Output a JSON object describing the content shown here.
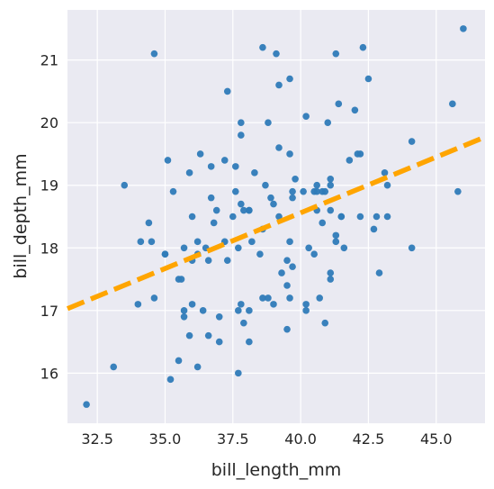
{
  "chart_data": {
    "type": "scatter",
    "xlabel": "bill_length_mm",
    "ylabel": "bill_depth_mm",
    "xlim": [
      31.4,
      46.8
    ],
    "ylim": [
      15.2,
      21.8
    ],
    "xticks": [
      32.5,
      35.0,
      37.5,
      40.0,
      42.5,
      45.0
    ],
    "xtick_labels": [
      "32.5",
      "35.0",
      "37.5",
      "40.0",
      "42.5",
      "45.0"
    ],
    "yticks": [
      16,
      17,
      18,
      19,
      20,
      21
    ],
    "ytick_labels": [
      "16",
      "17",
      "18",
      "19",
      "20",
      "21"
    ],
    "grid": true,
    "background": "#eaeaf2",
    "point_color": "#2f7bb8",
    "trend_color": "#ffa500",
    "trend_style": "dashed",
    "trend_line": {
      "x": [
        31.4,
        46.8
      ],
      "y": [
        17.03,
        19.77
      ]
    },
    "x": [
      32.1,
      33.1,
      33.5,
      34.0,
      34.1,
      34.4,
      34.5,
      34.6,
      34.6,
      35.0,
      35.0,
      35.1,
      35.2,
      35.3,
      35.5,
      35.5,
      35.6,
      35.7,
      35.7,
      35.7,
      35.9,
      35.9,
      36.0,
      36.0,
      36.0,
      36.2,
      36.2,
      36.2,
      36.3,
      36.4,
      36.5,
      36.6,
      36.6,
      36.7,
      36.7,
      36.8,
      36.9,
      37.0,
      37.0,
      37.2,
      37.2,
      37.3,
      37.3,
      37.5,
      37.6,
      37.6,
      37.7,
      37.7,
      37.7,
      37.8,
      37.8,
      37.8,
      37.8,
      37.9,
      37.9,
      38.1,
      38.1,
      38.1,
      38.1,
      38.2,
      38.3,
      38.5,
      38.6,
      38.6,
      38.6,
      38.7,
      38.8,
      38.8,
      38.9,
      39.0,
      39.0,
      39.1,
      39.2,
      39.2,
      39.2,
      39.3,
      39.5,
      39.5,
      39.5,
      39.6,
      39.6,
      39.6,
      39.6,
      39.7,
      39.7,
      39.7,
      39.8,
      40.1,
      40.2,
      40.2,
      40.2,
      40.3,
      40.5,
      40.5,
      40.6,
      40.6,
      40.6,
      40.7,
      40.8,
      40.8,
      40.9,
      40.9,
      41.0,
      41.1,
      41.1,
      41.1,
      41.1,
      41.1,
      41.3,
      41.3,
      41.3,
      41.4,
      41.5,
      41.5,
      41.6,
      41.8,
      42.0,
      42.1,
      42.2,
      42.2,
      42.3,
      42.5,
      42.7,
      42.8,
      42.9,
      43.1,
      43.2,
      43.2,
      44.1,
      44.1,
      45.6,
      45.8,
      46.0
    ],
    "y": [
      15.5,
      16.1,
      19.0,
      17.1,
      18.1,
      18.4,
      18.1,
      17.2,
      21.1,
      17.9,
      17.9,
      19.4,
      15.9,
      18.9,
      16.2,
      17.5,
      17.5,
      18.0,
      17.0,
      16.9,
      16.6,
      19.2,
      18.5,
      17.8,
      17.1,
      18.1,
      17.9,
      16.1,
      19.5,
      17.0,
      18.0,
      17.8,
      16.6,
      18.8,
      19.3,
      18.4,
      18.6,
      16.9,
      16.5,
      18.1,
      19.4,
      17.8,
      20.5,
      18.5,
      18.9,
      19.3,
      17.0,
      18.0,
      16.0,
      20.0,
      18.7,
      19.8,
      17.1,
      18.6,
      16.8,
      18.6,
      17.0,
      18.6,
      16.5,
      18.1,
      19.2,
      17.9,
      21.2,
      17.2,
      18.3,
      19.0,
      17.2,
      20.0,
      18.8,
      17.1,
      18.7,
      21.1,
      18.5,
      19.6,
      20.6,
      17.6,
      17.4,
      16.7,
      17.8,
      17.2,
      18.1,
      19.5,
      20.7,
      17.7,
      18.8,
      18.9,
      19.1,
      18.9,
      17.1,
      17.0,
      20.1,
      18.0,
      17.9,
      18.9,
      19.0,
      18.6,
      18.9,
      17.2,
      18.9,
      18.4,
      18.9,
      16.8,
      20.0,
      19.0,
      17.6,
      17.5,
      19.1,
      18.6,
      18.2,
      18.1,
      21.1,
      20.3,
      18.5,
      18.5,
      18.0,
      19.4,
      20.2,
      19.5,
      19.5,
      18.5,
      21.2,
      20.7,
      18.3,
      18.5,
      17.6,
      19.2,
      18.5,
      19.0,
      19.7,
      18.0,
      20.3,
      18.9,
      21.5
    ]
  }
}
